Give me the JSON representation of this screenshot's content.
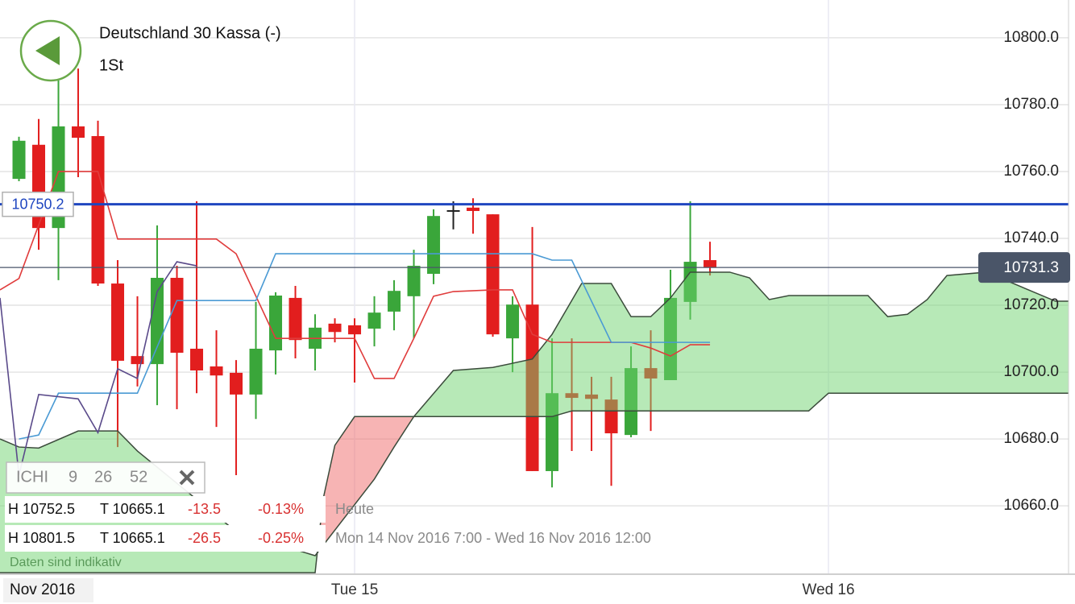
{
  "header": {
    "title": "Deutschland 30 Kassa (-)",
    "interval": "1St"
  },
  "chart_data": {
    "type": "candlestick",
    "x": [
      -17,
      -16,
      -15,
      -14,
      -13,
      -12,
      -11,
      -10,
      -9,
      -8,
      -7,
      -6,
      -5,
      -4,
      -3,
      -2,
      -1,
      0,
      1,
      2,
      3,
      4,
      5,
      6,
      7,
      8,
      9,
      10,
      11,
      12,
      13,
      14,
      15,
      16,
      17,
      18
    ],
    "open": [
      10757.8,
      10768.0,
      10743.1,
      10773.5,
      10770.6,
      10726.5,
      10704.8,
      10702.4,
      10728.2,
      10707.0,
      10701.7,
      10699.8,
      10693.3,
      10706.5,
      10722.2,
      10707.0,
      10714.5,
      10714.0,
      10713.0,
      10718.1,
      10722.7,
      10729.4,
      10748.2,
      10749.2,
      10747.2,
      10710.1,
      10720.2,
      10670.4,
      10693.7,
      10693.3,
      10691.8,
      10681.2,
      10701.2,
      10697.6,
      10721.0,
      10733.5
    ],
    "high": [
      10770.4,
      10775.7,
      10787.2,
      10790.8,
      10775.2,
      10733.5,
      10722.7,
      10743.9,
      10731.8,
      10751.1,
      10712.5,
      10703.6,
      10721.0,
      10723.9,
      10725.8,
      10717.3,
      10716.1,
      10716.1,
      10722.7,
      10727.5,
      10736.6,
      10748.7,
      10751.1,
      10752.0,
      10747.2,
      10722.7,
      10743.4,
      10710.1,
      10710.1,
      10698.6,
      10698.6,
      10707.7,
      10712.5,
      10730.6,
      10751.1,
      10739.0
    ],
    "low": [
      10757.1,
      10736.6,
      10727.5,
      10758.3,
      10725.8,
      10677.6,
      10695.7,
      10690.1,
      10688.9,
      10693.7,
      10683.6,
      10669.2,
      10686.0,
      10699.3,
      10704.1,
      10700.5,
      10708.9,
      10696.9,
      10707.7,
      10712.5,
      10710.1,
      10726.3,
      10742.7,
      10741.4,
      10710.6,
      10700.0,
      10670.4,
      10665.5,
      10676.4,
      10676.4,
      10666.0,
      10680.5,
      10682.4,
      10697.6,
      10715.7,
      10728.9
    ],
    "close": [
      10769.2,
      10743.1,
      10773.5,
      10770.1,
      10726.5,
      10703.4,
      10702.4,
      10728.2,
      10705.8,
      10700.5,
      10699.0,
      10693.3,
      10707.0,
      10722.9,
      10709.6,
      10713.3,
      10712.0,
      10711.3,
      10717.8,
      10724.3,
      10731.8,
      10746.7,
      10748.2,
      10748.2,
      10711.3,
      10720.2,
      10670.4,
      10693.7,
      10692.3,
      10692.0,
      10681.7,
      10701.2,
      10698.1,
      10722.2,
      10733.0,
      10731.3
    ],
    "up_color": "#3aa63a",
    "down_color": "#e21e1e",
    "doji_color": "#222222",
    "overlays": {
      "tenkan": {
        "color": "#e03c3c",
        "x": [
          -17.96,
          -17,
          -15,
          -13,
          -12,
          -7,
          -6,
          -4,
          0,
          1,
          2,
          3,
          4,
          5,
          7,
          8,
          9,
          10,
          14,
          15,
          16,
          17,
          18
        ],
        "values": [
          10724.6,
          10728.0,
          10760.0,
          10760.0,
          10739.8,
          10739.8,
          10735.4,
          10710.1,
          10710.1,
          10698.1,
          10698.1,
          10710.1,
          10722.7,
          10724.1,
          10724.6,
          10724.6,
          10711.3,
          10708.9,
          10708.9,
          10707.2,
          10704.8,
          10708.2,
          10708.2
        ]
      },
      "kijun": {
        "color": "#4a9ad4",
        "x": [
          -17,
          -16,
          -15,
          -11,
          -9,
          -5,
          -4,
          9,
          10,
          11,
          13,
          18
        ],
        "values": [
          10680.0,
          10681.2,
          10693.7,
          10693.7,
          10721.4,
          10721.4,
          10735.4,
          10735.4,
          10733.5,
          10733.5,
          10708.9,
          10708.9
        ]
      },
      "chikou": {
        "color": "#5a4a8a",
        "x": [
          -17.96,
          -17,
          -16,
          -14,
          -13,
          -12,
          -11,
          -10,
          -9,
          -8
        ],
        "values": [
          10722.2,
          10669.2,
          10693.3,
          10692.0,
          10681.9,
          10701.0,
          10698.1,
          10724.1,
          10733.0,
          10731.8
        ]
      }
    },
    "cloud": {
      "line_color": "#3b4b3b",
      "up_color": "#6fd36f",
      "down_color": "#f06a6a",
      "span_a": {
        "x": [
          -17.96,
          -17,
          -16,
          -14,
          -12,
          -11,
          -6,
          -2,
          1,
          2,
          3,
          5,
          7,
          9,
          10,
          11.5,
          13,
          14,
          15,
          16,
          17,
          19,
          20,
          21,
          22,
          26,
          27,
          28,
          29,
          30,
          32,
          35.5,
          36.16
        ],
        "values": [
          10680.0,
          10677.6,
          10677.3,
          10682.4,
          10682.4,
          10676.4,
          10652.3,
          10645.1,
          10668.0,
          10677.6,
          10686.7,
          10700.5,
          10701.4,
          10703.9,
          10711.3,
          10726.5,
          10726.5,
          10716.6,
          10716.6,
          10722.2,
          10729.9,
          10729.9,
          10728.2,
          10721.7,
          10722.9,
          10722.9,
          10716.6,
          10717.3,
          10721.7,
          10728.9,
          10729.9,
          10721.2,
          10721.2
        ]
      },
      "span_b": {
        "x": [
          -17.96,
          -2,
          -1.6,
          -1,
          0,
          10,
          11,
          23,
          24,
          36.16
        ],
        "values": [
          10640.0,
          10640.0,
          10661.9,
          10678.1,
          10686.7,
          10686.7,
          10688.4,
          10688.4,
          10693.7,
          10693.7
        ]
      }
    },
    "levels": [
      {
        "value": 10750.2,
        "color": "#1f46c0"
      },
      {
        "value": 10731.3,
        "color": "#4a5568"
      }
    ],
    "xlim": [
      -17.96,
      36.16
    ],
    "ylim": [
      10639.8,
      10811.3
    ],
    "yticks": [
      {
        "value": 10660,
        "label": "10660.0"
      },
      {
        "value": 10680,
        "label": "10680.0"
      },
      {
        "value": 10700,
        "label": "10700.0"
      },
      {
        "value": 10720,
        "label": "10720.0"
      },
      {
        "value": 10740,
        "label": "10740.0"
      },
      {
        "value": 10760,
        "label": "10760.0"
      },
      {
        "value": 10780,
        "label": "10780.0"
      },
      {
        "value": 10800,
        "label": "10800.0"
      }
    ],
    "xticks": [
      {
        "value": 0,
        "label": "Tue 15"
      },
      {
        "value": 24,
        "label": "Wed 16"
      }
    ],
    "period_label": "Nov 2016",
    "grid": true
  },
  "indicator": {
    "label": "ICHI",
    "params": [
      9,
      26,
      52
    ]
  },
  "stats": [
    [
      "H 10752.5",
      "T 10665.1",
      "-13.5",
      "-0.13%",
      "Heute"
    ],
    [
      "H 10801.5",
      "T 10665.1",
      "-26.5",
      "-0.25%",
      "Mon 14 Nov 2016 7:00 - Wed 16 Nov 2016 12:00"
    ]
  ],
  "note": "Daten sind indikativ"
}
